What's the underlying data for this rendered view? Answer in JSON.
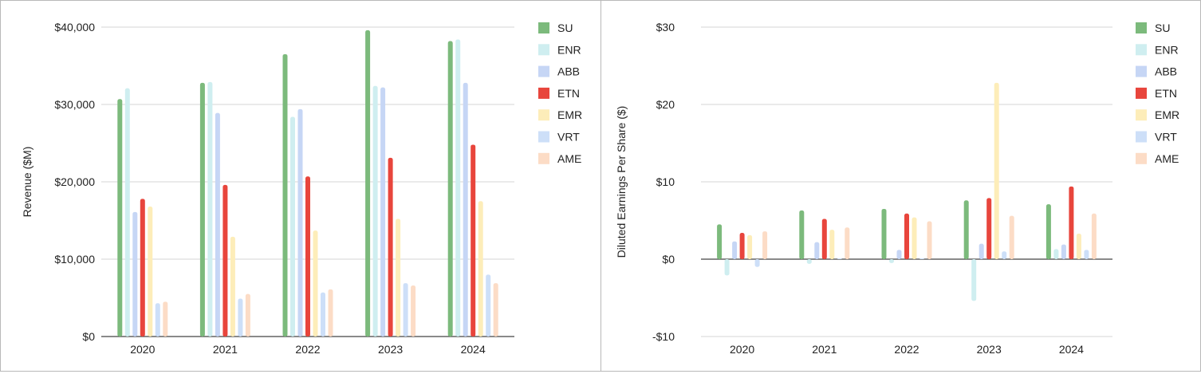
{
  "chart_data": [
    {
      "type": "bar",
      "ylabel": "Revenue ($M)",
      "xlabel": "",
      "categories": [
        "2020",
        "2021",
        "2022",
        "2023",
        "2024"
      ],
      "ylim": [
        0,
        40000
      ],
      "yticks": [
        0,
        10000,
        20000,
        30000,
        40000
      ],
      "ytick_labels": [
        "$0",
        "$10,000",
        "$20,000",
        "$30,000",
        "$40,000"
      ],
      "grid": true,
      "legend_position": "right",
      "series": [
        {
          "name": "SU",
          "color": "#7cba7c",
          "values": [
            30700,
            32800,
            36500,
            39600,
            38200
          ]
        },
        {
          "name": "ENR",
          "color": "#cfeef0",
          "values": [
            32100,
            32900,
            28400,
            32400,
            38400
          ]
        },
        {
          "name": "ABB",
          "color": "#c6d6f5",
          "values": [
            16100,
            28900,
            29400,
            32200,
            32800
          ]
        },
        {
          "name": "ETN",
          "color": "#e8453c",
          "values": [
            17800,
            19600,
            20700,
            23100,
            24800
          ]
        },
        {
          "name": "EMR",
          "color": "#fdedb9",
          "values": [
            16800,
            12900,
            13700,
            15200,
            17500
          ]
        },
        {
          "name": "VRT",
          "color": "#cddff8",
          "values": [
            4300,
            4900,
            5700,
            6900,
            8000
          ]
        },
        {
          "name": "AME",
          "color": "#fcdcc6",
          "values": [
            4500,
            5500,
            6100,
            6600,
            6900
          ]
        }
      ]
    },
    {
      "type": "bar",
      "ylabel": "Diluted Earnings Per Share ($)",
      "xlabel": "",
      "categories": [
        "2020",
        "2021",
        "2022",
        "2023",
        "2024"
      ],
      "ylim": [
        -10,
        30
      ],
      "yticks": [
        -10,
        0,
        10,
        20,
        30
      ],
      "ytick_labels": [
        "-$10",
        "$0",
        "$10",
        "$20",
        "$30"
      ],
      "grid": true,
      "legend_position": "right",
      "series": [
        {
          "name": "SU",
          "color": "#7cba7c",
          "values": [
            4.5,
            6.3,
            6.5,
            7.6,
            7.1
          ]
        },
        {
          "name": "ENR",
          "color": "#cfeef0",
          "values": [
            -2.1,
            -0.6,
            -0.5,
            -5.4,
            1.3
          ]
        },
        {
          "name": "ABB",
          "color": "#c6d6f5",
          "values": [
            2.3,
            2.2,
            1.2,
            2.0,
            1.9
          ]
        },
        {
          "name": "ETN",
          "color": "#e8453c",
          "values": [
            3.4,
            5.2,
            5.9,
            7.9,
            9.4
          ]
        },
        {
          "name": "EMR",
          "color": "#fdedb9",
          "values": [
            3.1,
            3.8,
            5.4,
            22.8,
            3.3
          ]
        },
        {
          "name": "VRT",
          "color": "#cddff8",
          "values": [
            -1.0,
            0.1,
            0.1,
            1.0,
            1.2
          ]
        },
        {
          "name": "AME",
          "color": "#fcdcc6",
          "values": [
            3.6,
            4.1,
            4.9,
            5.6,
            5.9
          ]
        }
      ]
    }
  ]
}
